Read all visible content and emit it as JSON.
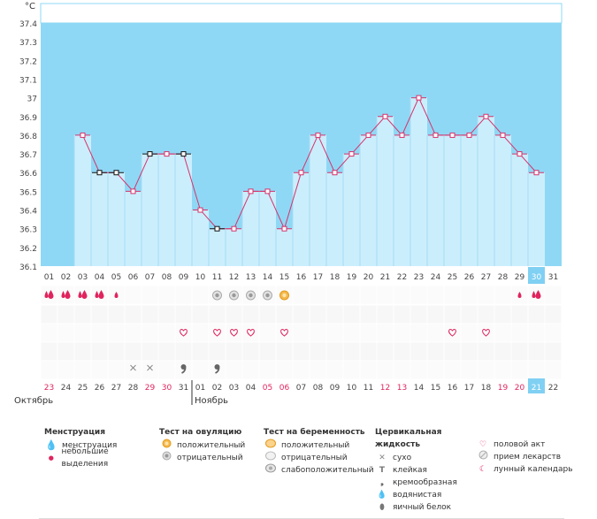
{
  "chart_data": {
    "type": "bar",
    "ylabel": "°C",
    "ylim": [
      36.1,
      37.4
    ],
    "yticks": [
      "37.4",
      "37.3",
      "37.2",
      "37.1",
      "37",
      "36.9",
      "36.8",
      "36.7",
      "36.6",
      "36.5",
      "36.4",
      "36.3",
      "36.2",
      "36.1"
    ],
    "cycle_days": [
      "01",
      "02",
      "03",
      "04",
      "05",
      "06",
      "07",
      "08",
      "09",
      "10",
      "11",
      "12",
      "13",
      "14",
      "15",
      "16",
      "17",
      "18",
      "19",
      "20",
      "21",
      "22",
      "23",
      "24",
      "25",
      "26",
      "27",
      "28",
      "29",
      "30",
      "31"
    ],
    "highlighted_day_index": 29,
    "temperatures": [
      null,
      null,
      36.8,
      36.6,
      36.6,
      36.5,
      36.7,
      36.7,
      36.7,
      36.4,
      36.3,
      36.3,
      36.5,
      36.5,
      36.3,
      36.6,
      36.8,
      36.6,
      36.7,
      36.8,
      36.9,
      36.8,
      37.0,
      36.8,
      36.8,
      36.8,
      36.9,
      36.8,
      36.7,
      36.6,
      null
    ],
    "excluded_points": [
      3,
      4,
      6,
      8,
      10
    ],
    "dates": [
      "23",
      "24",
      "25",
      "26",
      "27",
      "28",
      "29",
      "30",
      "31",
      "01",
      "02",
      "03",
      "04",
      "05",
      "06",
      "07",
      "08",
      "09",
      "10",
      "11",
      "12",
      "13",
      "14",
      "15",
      "16",
      "17",
      "18",
      "19",
      "20",
      "21",
      "22"
    ],
    "red_dates": [
      0,
      6,
      7,
      13,
      14,
      20,
      21,
      27,
      28
    ],
    "months": [
      "Октябрь",
      "Ноябрь"
    ],
    "menstruation": [
      2,
      2,
      2,
      2,
      1,
      0,
      0,
      0,
      0,
      0,
      0,
      0,
      0,
      0,
      0,
      0,
      0,
      0,
      0,
      0,
      0,
      0,
      0,
      0,
      0,
      0,
      0,
      0,
      1,
      2,
      0
    ],
    "ovulation_tests": [
      0,
      0,
      0,
      0,
      0,
      0,
      0,
      0,
      0,
      0,
      2,
      2,
      2,
      2,
      1,
      0,
      0,
      0,
      0,
      0,
      0,
      0,
      0,
      0,
      0,
      0,
      0,
      0,
      0,
      0,
      0
    ],
    "intercourse": [
      0,
      0,
      0,
      0,
      0,
      0,
      0,
      0,
      1,
      0,
      1,
      1,
      1,
      0,
      1,
      0,
      0,
      0,
      0,
      0,
      0,
      0,
      0,
      0,
      1,
      0,
      1,
      0,
      0,
      0,
      0
    ],
    "cervical_fluid": [
      "",
      "",
      "",
      "",
      "",
      "dry",
      "dry",
      "",
      "creamy",
      "",
      "creamy",
      "",
      "",
      "",
      "",
      "",
      "",
      "",
      "",
      "",
      "",
      "",
      "",
      "",
      "",
      "",
      "",
      "",
      "",
      "",
      ""
    ],
    "colors": {
      "sky": "#8fd8f5",
      "bar": "#cbeefd",
      "line": "#d6336c",
      "highlight": "#7fd0f3",
      "red_date": "#e0245e",
      "icon": "#e0245e"
    }
  },
  "legend": {
    "menstruation": {
      "title": "Менструация",
      "items": [
        "менструация",
        "небольшие выделения"
      ]
    },
    "ovulation": {
      "title": "Тест на овуляцию",
      "items": [
        "положительный",
        "отрицательный"
      ]
    },
    "pregnancy": {
      "title": "Тест на беременность",
      "items": [
        "положительный",
        "отрицательный",
        "слабоположительный"
      ]
    },
    "fluid": {
      "title": "Цервикальная жидкость",
      "items": [
        "сухо",
        "клейкая",
        "кремообразная",
        "водянистая",
        "яичный белок"
      ]
    },
    "other": {
      "items": [
        "половой акт",
        "прием лекарств",
        "лунный календарь"
      ]
    }
  }
}
